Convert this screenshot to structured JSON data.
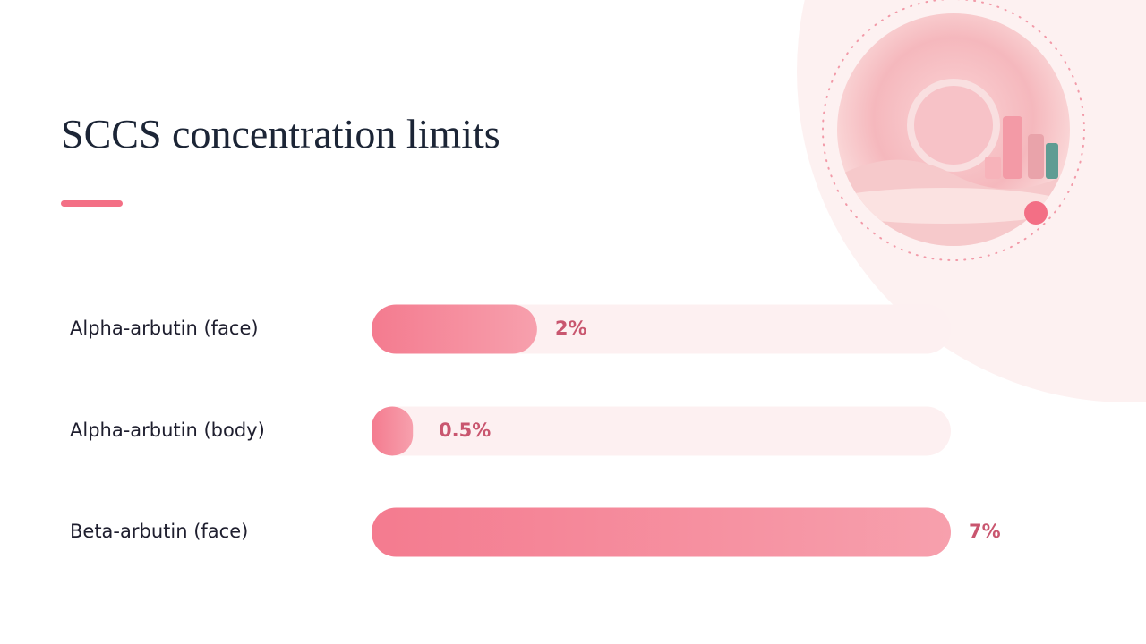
{
  "chart_data": {
    "type": "bar",
    "title": "SCCS concentration limits",
    "categories": [
      "Alpha-arbutin (face)",
      "Alpha-arbutin (body)",
      "Beta-arbutin (face)"
    ],
    "values": [
      2,
      0.5,
      7
    ],
    "value_labels": [
      "2%",
      "0.5%",
      "7%"
    ],
    "color": "#f47b8f",
    "xlim": [
      0,
      7
    ]
  }
}
